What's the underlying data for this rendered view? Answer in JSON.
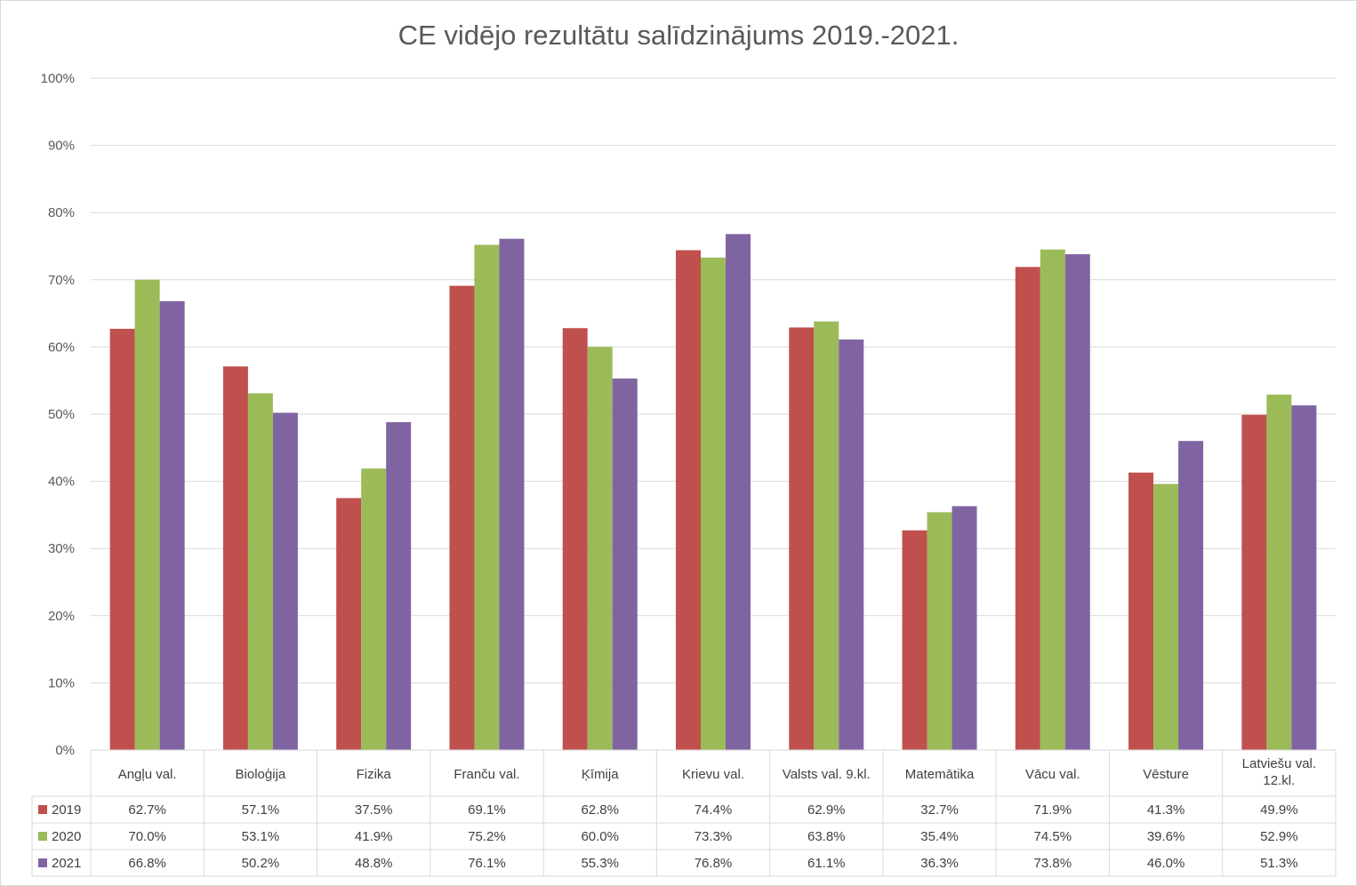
{
  "chart_data": {
    "type": "bar",
    "title": "CE vidējo rezultātu salīdzinājums 2019.-2021.",
    "ylim": [
      0,
      100
    ],
    "yticks": [
      0,
      10,
      20,
      30,
      40,
      50,
      60,
      70,
      80,
      90,
      100
    ],
    "ytick_suffix": "%",
    "grid": true,
    "legend": "data-table-left",
    "categories": [
      "Angļu val.",
      "Bioloģija",
      "Fizika",
      "Franču val.",
      "Ķīmija",
      "Krievu val.",
      "Valsts val. 9.kl.",
      "Matemātika",
      "Vācu val.",
      "Vēsture",
      "Latviešu val. 12.kl."
    ],
    "series": [
      {
        "name": "2019",
        "color": "#c0504d",
        "values": [
          62.7,
          57.1,
          37.5,
          69.1,
          62.8,
          74.4,
          62.9,
          32.7,
          71.9,
          41.3,
          49.9
        ]
      },
      {
        "name": "2020",
        "color": "#9bbb59",
        "values": [
          70.0,
          53.1,
          41.9,
          75.2,
          60.0,
          73.3,
          63.8,
          35.4,
          74.5,
          39.6,
          52.9
        ]
      },
      {
        "name": "2021",
        "color": "#8064a2",
        "values": [
          66.8,
          50.2,
          48.8,
          76.1,
          55.3,
          76.8,
          61.1,
          36.3,
          73.8,
          46.0,
          51.3
        ]
      }
    ]
  }
}
